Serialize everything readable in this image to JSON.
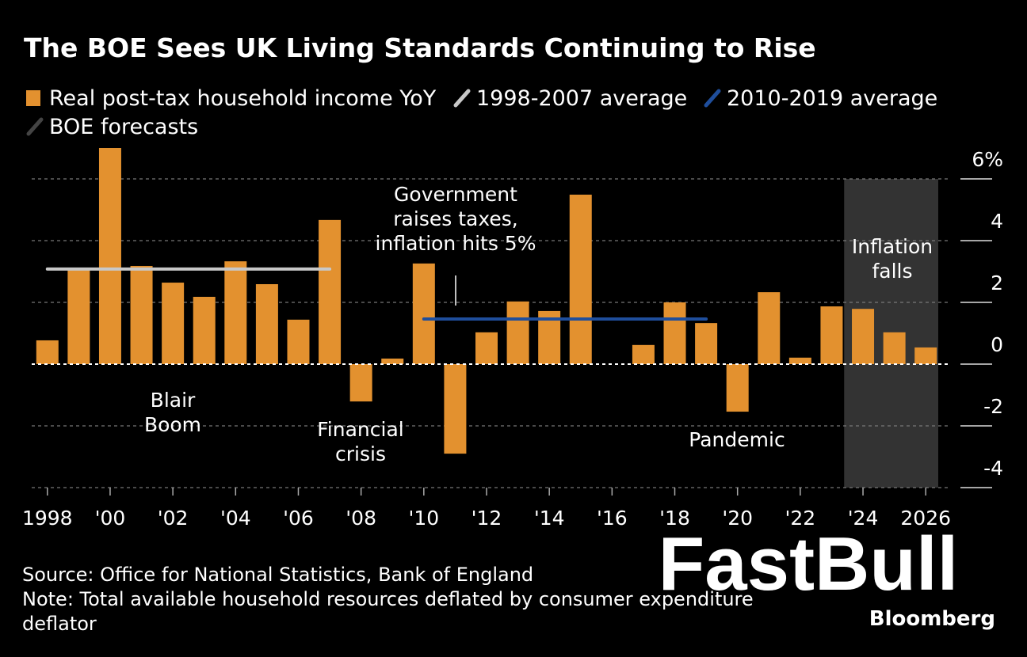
{
  "chart_data": {
    "type": "bar",
    "title": "The BOE Sees UK Living Standards Continuing to Rise",
    "x": [
      1998,
      1999,
      2000,
      2001,
      2002,
      2003,
      2004,
      2005,
      2006,
      2007,
      2008,
      2009,
      2010,
      2011,
      2012,
      2013,
      2014,
      2015,
      2016,
      2017,
      2018,
      2019,
      2020,
      2021,
      2022,
      2023,
      2024,
      2025,
      2026
    ],
    "series": [
      {
        "name": "Real post-tax household income YoY",
        "color": "#e3912f",
        "values": [
          0.77,
          3.08,
          7.0,
          3.18,
          2.64,
          2.18,
          3.33,
          2.59,
          1.44,
          4.67,
          -1.21,
          0.18,
          3.26,
          -2.9,
          1.03,
          2.03,
          1.72,
          5.49,
          0,
          0.62,
          2.0,
          1.33,
          -1.54,
          2.33,
          0.21,
          1.87,
          1.79,
          1.03,
          0.54
        ]
      }
    ],
    "reference_lines": [
      {
        "name": "1998-2007 average",
        "color": "#c8c8c8",
        "value": 3.08,
        "x": [
          1998,
          2007
        ]
      },
      {
        "name": "2010-2019 average",
        "color": "#1f4e9c",
        "value": 1.46,
        "x": [
          2010,
          2019
        ]
      }
    ],
    "shaded_region": {
      "name": "BOE forecasts",
      "color": "#333333",
      "x": [
        2024,
        2026
      ]
    },
    "xlim": [
      1997.5,
      2026.5
    ],
    "xticks": [
      1998,
      {
        "value": 2000,
        "label": "'00"
      },
      {
        "value": 2002,
        "label": "'02"
      },
      {
        "value": 2004,
        "label": "'04"
      },
      {
        "value": 2006,
        "label": "'06"
      },
      {
        "value": 2008,
        "label": "'08"
      },
      {
        "value": 2010,
        "label": "'10"
      },
      {
        "value": 2012,
        "label": "'12"
      },
      {
        "value": 2014,
        "label": "'14"
      },
      {
        "value": 2016,
        "label": "'16"
      },
      {
        "value": 2018,
        "label": "'18"
      },
      {
        "value": 2020,
        "label": "'20"
      },
      {
        "value": 2022,
        "label": "'22"
      },
      {
        "value": 2024,
        "label": "'24"
      },
      2026
    ],
    "ylim": [
      -4,
      7
    ],
    "yticks": [
      -4,
      -2,
      0,
      2,
      4,
      {
        "value": 6,
        "label": "6%"
      }
    ],
    "grid": true,
    "annotations": [
      {
        "lines": [
          "Blair",
          "Boom"
        ]
      },
      {
        "lines": [
          "Financial",
          "crisis"
        ]
      },
      {
        "lines": [
          "Government",
          "raises taxes,",
          "inflation hits 5%"
        ]
      },
      {
        "lines": [
          "Pandemic"
        ]
      },
      {
        "lines": [
          "Inflation",
          "falls"
        ]
      }
    ],
    "source": "Source: Office for National Statistics, Bank of England",
    "note": [
      "Note: Total available household resources deflated by consumer expenditure",
      "deflator"
    ],
    "watermark": "FastBull",
    "brand": "Bloomberg"
  }
}
